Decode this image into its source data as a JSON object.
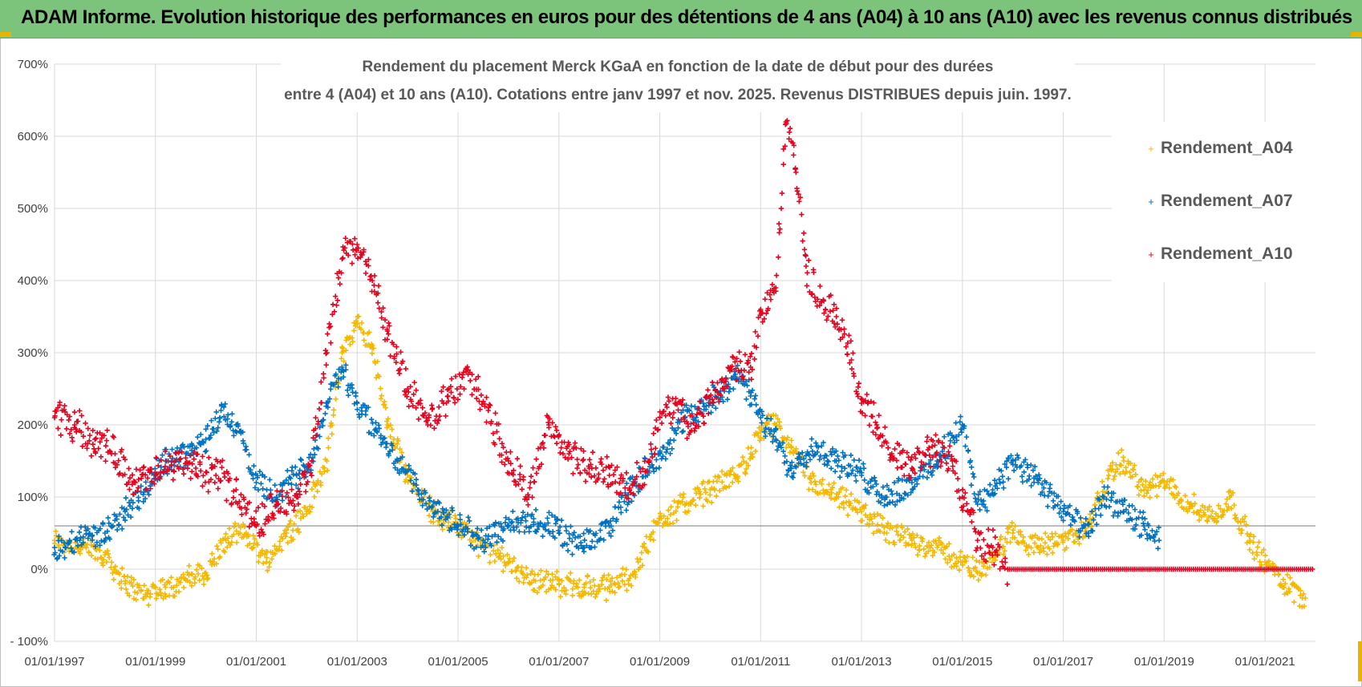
{
  "banner": {
    "title": "ADAM Informe. Evolution historique des performances en euros pour des détentions de 4 ans (A04) à 10 ans (A10) avec les revenus connus distribués"
  },
  "colors": {
    "banner_bg": "#7cc47c",
    "A04": "#f5b800",
    "A07": "#0070c0",
    "A10": "#e8001c",
    "grid": "#d9d9d9",
    "baseline": "#a6a6a6"
  },
  "chart_data": {
    "type": "scatter",
    "title": "Rendement du placement Merck KGaA en fonction de la date de début pour des durées entre 4 (A04) et 10 ans (A10). Cotations entre janv 1997 et nov. 2025. Revenus DISTRIBUES depuis juin. 1997.",
    "title_lines": [
      "Rendement du placement Merck KGaA en fonction de la date de début pour des durées",
      "entre 4 (A04) et 10 ans (A10). Cotations entre janv 1997 et nov. 2025. Revenus DISTRIBUES depuis juin. 1997."
    ],
    "xlabel": "",
    "ylabel": "",
    "xlim": [
      1997.0,
      2022.0
    ],
    "ylim": [
      -100,
      700
    ],
    "y_ticks": [
      -100,
      0,
      100,
      200,
      300,
      400,
      500,
      600,
      700
    ],
    "y_tick_labels": [
      "- 100%",
      "0%",
      "100%",
      "200%",
      "300%",
      "400%",
      "500%",
      "600%",
      "700%"
    ],
    "x_ticks": [
      1997,
      1999,
      2001,
      2003,
      2005,
      2007,
      2009,
      2011,
      2013,
      2015,
      2017,
      2019,
      2021
    ],
    "x_tick_labels": [
      "01/01/1997",
      "01/01/1999",
      "01/01/2001",
      "01/01/2003",
      "01/01/2005",
      "01/01/2007",
      "01/01/2009",
      "01/01/2011",
      "01/01/2013",
      "01/01/2015",
      "01/01/2017",
      "01/01/2019",
      "01/01/2021"
    ],
    "reference_line": 60,
    "legend_position": "top-right",
    "series": [
      {
        "name": "Rendement_A04",
        "x": [
          1997.0,
          1997.5,
          1998.0,
          1998.4,
          1998.8,
          1999.2,
          1999.6,
          2000.0,
          2000.4,
          2000.8,
          2001.2,
          2001.6,
          2002.0,
          2002.4,
          2002.7,
          2003.0,
          2003.3,
          2003.6,
          2004.0,
          2004.5,
          2005.0,
          2005.5,
          2006.0,
          2006.5,
          2007.0,
          2007.5,
          2008.0,
          2008.5,
          2009.0,
          2009.5,
          2010.0,
          2010.5,
          2010.8,
          2011.0,
          2011.3,
          2011.6,
          2012.0,
          2012.5,
          2013.0,
          2013.5,
          2014.0,
          2014.5,
          2015.0,
          2015.3,
          2015.6,
          2016.0,
          2016.5,
          2017.0,
          2017.5,
          2017.9,
          2018.2,
          2018.6,
          2019.0,
          2019.5,
          2020.0,
          2020.3,
          2020.7,
          2021.0,
          2021.4,
          2021.8
        ],
        "y": [
          40,
          30,
          20,
          -20,
          -35,
          -25,
          -15,
          -5,
          40,
          50,
          10,
          50,
          80,
          150,
          300,
          340,
          310,
          200,
          130,
          80,
          60,
          30,
          10,
          -15,
          -20,
          -25,
          -25,
          -5,
          70,
          90,
          110,
          130,
          160,
          190,
          200,
          170,
          120,
          100,
          80,
          50,
          40,
          30,
          10,
          -5,
          20,
          50,
          30,
          40,
          60,
          130,
          150,
          110,
          120,
          90,
          70,
          100,
          40,
          10,
          -20,
          -40
        ]
      },
      {
        "name": "Rendement_A07",
        "x": [
          1997.0,
          1997.5,
          1998.0,
          1998.4,
          1998.8,
          1999.2,
          1999.6,
          2000.0,
          2000.3,
          2000.6,
          2001.0,
          2001.4,
          2001.8,
          2002.1,
          2002.4,
          2002.7,
          2003.0,
          2003.4,
          2003.8,
          2004.2,
          2004.6,
          2005.0,
          2005.5,
          2006.0,
          2006.5,
          2007.0,
          2007.5,
          2008.0,
          2008.5,
          2009.0,
          2009.5,
          2010.0,
          2010.5,
          2010.8,
          2011.0,
          2011.3,
          2011.6,
          2012.0,
          2012.5,
          2013.0,
          2013.5,
          2014.0,
          2014.5,
          2015.0,
          2015.3,
          2015.6,
          2016.0,
          2016.5,
          2017.0,
          2017.5,
          2017.8,
          2018.2,
          2018.6,
          2018.9
        ],
        "y": [
          30,
          40,
          50,
          80,
          110,
          150,
          160,
          180,
          220,
          200,
          120,
          100,
          130,
          150,
          230,
          280,
          230,
          190,
          150,
          110,
          80,
          60,
          40,
          60,
          70,
          50,
          30,
          60,
          120,
          160,
          210,
          230,
          270,
          240,
          210,
          180,
          140,
          170,
          150,
          130,
          100,
          120,
          150,
          200,
          90,
          110,
          150,
          120,
          80,
          50,
          100,
          80,
          60,
          40
        ]
      },
      {
        "name": "Rendement_A10",
        "x": [
          1997.0,
          1997.4,
          1997.8,
          1998.2,
          1998.6,
          1999.0,
          1999.4,
          1999.8,
          2000.2,
          2000.6,
          2001.0,
          2001.4,
          2001.8,
          2002.1,
          2002.4,
          2002.7,
          2003.0,
          2003.3,
          2003.6,
          2004.0,
          2004.4,
          2004.8,
          2005.2,
          2005.6,
          2006.0,
          2006.4,
          2006.8,
          2007.2,
          2007.6,
          2008.0,
          2008.4,
          2008.8,
          2009.0,
          2009.3,
          2009.6,
          2010.0,
          2010.4,
          2010.8,
          2011.0,
          2011.3,
          2011.5,
          2011.7,
          2011.9,
          2012.2,
          2012.5,
          2012.8,
          2013.0,
          2013.3,
          2013.6,
          2014.0,
          2014.4,
          2014.8,
          2015.0,
          2015.3,
          2015.6,
          2015.9
        ],
        "y": [
          210,
          200,
          180,
          160,
          120,
          130,
          150,
          140,
          130,
          110,
          60,
          90,
          100,
          150,
          300,
          430,
          450,
          400,
          330,
          250,
          200,
          240,
          270,
          220,
          150,
          100,
          200,
          160,
          140,
          130,
          110,
          150,
          210,
          230,
          190,
          230,
          280,
          280,
          360,
          390,
          620,
          550,
          420,
          370,
          350,
          290,
          230,
          200,
          160,
          140,
          170,
          150,
          100,
          40,
          30,
          0
        ]
      }
    ]
  },
  "legend": {
    "items": [
      "Rendement_A04",
      "Rendement_A07",
      "Rendement_A10"
    ]
  }
}
